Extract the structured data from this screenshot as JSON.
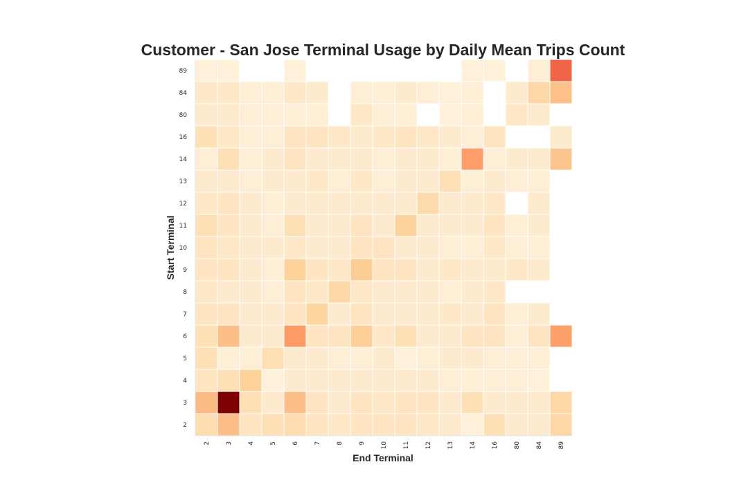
{
  "chart_data": {
    "type": "heatmap",
    "title": "Customer - San Jose Terminal Usage by Daily Mean Trips Count",
    "xlabel": "End Terminal",
    "ylabel": "Start Terminal",
    "x_categories": [
      "2",
      "3",
      "4",
      "5",
      "6",
      "7",
      "8",
      "9",
      "10",
      "11",
      "12",
      "13",
      "14",
      "16",
      "80",
      "84",
      "89"
    ],
    "y_categories": [
      "89",
      "84",
      "80",
      "16",
      "14",
      "13",
      "12",
      "11",
      "10",
      "9",
      "8",
      "7",
      "6",
      "5",
      "4",
      "3",
      "2"
    ],
    "values": [
      [
        0.5,
        0.5,
        null,
        null,
        0.5,
        null,
        null,
        null,
        null,
        null,
        null,
        null,
        0.5,
        0.5,
        null,
        0.6,
        5.0
      ],
      [
        1.0,
        1.0,
        0.6,
        0.6,
        1.0,
        0.8,
        null,
        0.6,
        0.6,
        0.8,
        0.6,
        0.5,
        0.6,
        null,
        0.8,
        1.8,
        2.8
      ],
      [
        0.8,
        0.8,
        0.6,
        0.6,
        0.6,
        0.6,
        null,
        1.0,
        0.6,
        0.6,
        null,
        0.5,
        0.6,
        null,
        1.0,
        0.8,
        null
      ],
      [
        1.4,
        1.0,
        0.6,
        0.6,
        1.2,
        1.2,
        1.0,
        0.8,
        1.0,
        1.2,
        1.0,
        0.8,
        0.6,
        1.2,
        null,
        null,
        0.8
      ],
      [
        0.6,
        1.4,
        0.6,
        0.8,
        1.2,
        0.8,
        0.8,
        0.8,
        0.6,
        0.8,
        0.8,
        0.6,
        3.6,
        0.6,
        0.8,
        0.8,
        2.6
      ],
      [
        0.8,
        0.8,
        0.6,
        0.8,
        0.8,
        1.0,
        0.6,
        1.0,
        0.6,
        0.8,
        0.8,
        1.4,
        0.6,
        0.8,
        0.6,
        0.6,
        null
      ],
      [
        1.0,
        1.2,
        0.8,
        0.6,
        0.8,
        0.8,
        0.8,
        0.8,
        0.8,
        0.8,
        1.7,
        0.8,
        0.8,
        1.0,
        null,
        0.8,
        null
      ],
      [
        1.4,
        1.2,
        0.8,
        0.6,
        1.4,
        0.8,
        0.8,
        1.2,
        0.8,
        2.0,
        0.8,
        0.8,
        0.8,
        1.2,
        0.6,
        0.8,
        null
      ],
      [
        1.2,
        1.0,
        0.8,
        0.8,
        1.0,
        0.8,
        0.8,
        1.2,
        1.2,
        0.8,
        0.8,
        0.6,
        0.6,
        1.0,
        0.6,
        0.6,
        null
      ],
      [
        1.2,
        1.2,
        0.8,
        0.6,
        2.1,
        1.2,
        1.0,
        2.3,
        1.2,
        1.2,
        0.8,
        1.0,
        0.8,
        0.8,
        1.0,
        0.8,
        null
      ],
      [
        1.0,
        0.8,
        0.8,
        0.6,
        1.2,
        1.0,
        1.8,
        1.0,
        0.8,
        0.8,
        0.8,
        0.6,
        0.8,
        1.0,
        null,
        null,
        null
      ],
      [
        1.2,
        1.2,
        0.8,
        0.8,
        1.2,
        1.9,
        0.8,
        1.2,
        0.8,
        0.8,
        0.8,
        1.0,
        0.8,
        1.2,
        0.6,
        0.8,
        null
      ],
      [
        1.4,
        2.9,
        0.8,
        0.8,
        3.7,
        1.2,
        1.2,
        2.2,
        1.0,
        1.4,
        0.8,
        0.8,
        1.2,
        1.2,
        0.6,
        1.2,
        3.6
      ],
      [
        1.4,
        0.6,
        0.6,
        1.5,
        0.8,
        0.8,
        0.6,
        0.6,
        0.8,
        0.5,
        0.6,
        0.8,
        0.8,
        0.6,
        0.6,
        0.6,
        null
      ],
      [
        1.2,
        1.4,
        2.1,
        0.5,
        0.8,
        0.8,
        0.8,
        0.8,
        0.8,
        0.8,
        0.8,
        0.6,
        0.6,
        0.6,
        0.6,
        0.5,
        null
      ],
      [
        3.0,
        8.0,
        1.4,
        0.8,
        2.9,
        1.2,
        0.8,
        1.2,
        1.0,
        1.2,
        1.2,
        0.8,
        1.4,
        0.8,
        0.8,
        0.8,
        1.8
      ],
      [
        1.6,
        2.9,
        1.2,
        1.4,
        1.6,
        1.2,
        1.0,
        1.2,
        1.2,
        1.2,
        1.0,
        0.8,
        0.5,
        1.4,
        0.8,
        0.8,
        1.8
      ]
    ],
    "colormap": "OrRd",
    "vmin": 0,
    "vmax": 8.0,
    "grid": false,
    "legend": "none"
  }
}
